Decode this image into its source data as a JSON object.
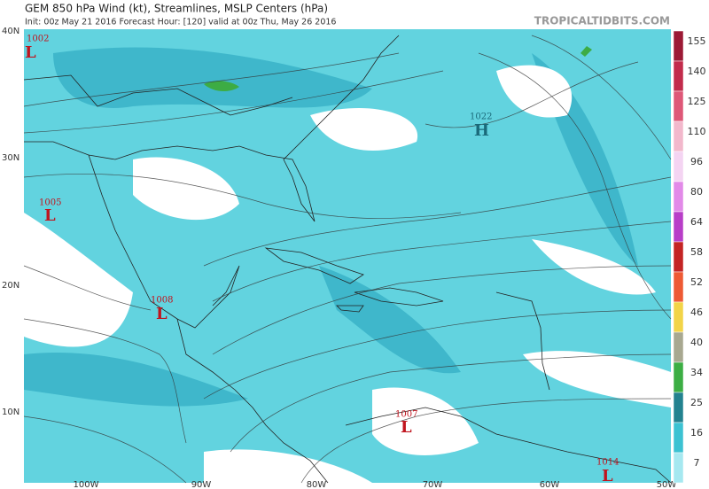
{
  "header": {
    "title": "GEM 850 hPa Wind (kt), Streamlines, MSLP Centers (hPa)",
    "subtitle": "Init: 00z May 21 2016   Forecast Hour: [120]   valid at 00z Thu, May 26 2016",
    "site": "TROPICALTIDBITS.COM"
  },
  "latitudes": [
    "40N",
    "30N",
    "20N",
    "10N"
  ],
  "longitudes": [
    "100W",
    "90W",
    "80W",
    "70W",
    "60W",
    "50W"
  ],
  "colorbar": [
    {
      "value": 155,
      "color": "#9c1a35"
    },
    {
      "value": 140,
      "color": "#c22c4c"
    },
    {
      "value": 125,
      "color": "#de5878"
    },
    {
      "value": 110,
      "color": "#f2b8cc"
    },
    {
      "value": 96,
      "color": "#f4d4f2"
    },
    {
      "value": 80,
      "color": "#e28ae8"
    },
    {
      "value": 64,
      "color": "#b83ec8"
    },
    {
      "value": 58,
      "color": "#c42424"
    },
    {
      "value": 52,
      "color": "#ee5a34"
    },
    {
      "value": 46,
      "color": "#f2d448"
    },
    {
      "value": 40,
      "color": "#a8a890"
    },
    {
      "value": 34,
      "color": "#3cae44"
    },
    {
      "value": 25,
      "color": "#23828f"
    },
    {
      "value": 16,
      "color": "#3cc2d2"
    },
    {
      "value": 7,
      "color": "#a6e8f0"
    }
  ],
  "centers": [
    {
      "pressure": "1002",
      "symbol": "L"
    },
    {
      "pressure": "1005",
      "symbol": "L"
    },
    {
      "pressure": "1008",
      "symbol": "L"
    },
    {
      "pressure": "1007",
      "symbol": "L"
    },
    {
      "pressure": "1014",
      "symbol": "L"
    },
    {
      "pressure": "1022",
      "symbol": "H"
    }
  ]
}
